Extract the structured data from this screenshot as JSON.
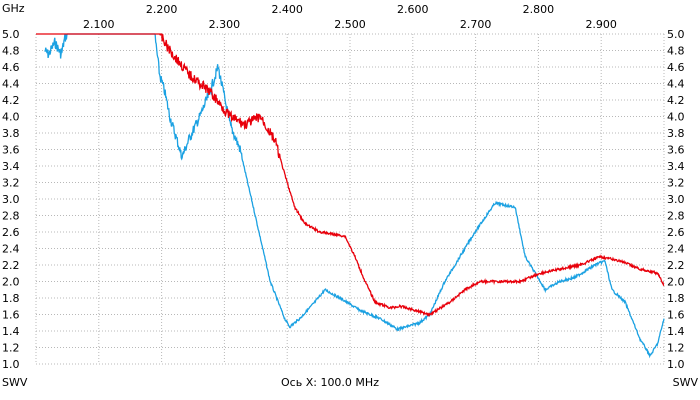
{
  "chart_data": {
    "type": "line",
    "title": "",
    "x_unit_label": "GHz",
    "xlabel": "Ось X: 100.0 MHz",
    "ylabel_left": "SWV",
    "ylabel_right": "SWV",
    "xlim": [
      2.0,
      3.0
    ],
    "ylim": [
      1.0,
      5.0
    ],
    "grid": true,
    "x_ticks": [
      "2.100",
      "2.200",
      "2.300",
      "2.400",
      "2.500",
      "2.600",
      "2.700",
      "2.800",
      "2.900"
    ],
    "y_ticks": [
      "1.0",
      "1.2",
      "1.4",
      "1.6",
      "1.8",
      "2.0",
      "2.2",
      "2.4",
      "2.6",
      "2.8",
      "3.0",
      "3.2",
      "3.4",
      "3.6",
      "3.8",
      "4.0",
      "4.2",
      "4.4",
      "4.6",
      "4.8",
      "5.0"
    ],
    "series": [
      {
        "name": "blue",
        "color": "#1ba1e2",
        "noisy": true,
        "x": [
          2.014,
          2.02,
          2.03,
          2.04,
          2.046,
          2.05,
          2.1,
          2.189,
          2.197,
          2.205,
          2.213,
          2.229,
          2.232,
          2.245,
          2.261,
          2.277,
          2.29,
          2.309,
          2.325,
          2.349,
          2.373,
          2.396,
          2.404,
          2.42,
          2.444,
          2.46,
          2.484,
          2.516,
          2.548,
          2.576,
          2.611,
          2.627,
          2.651,
          2.675,
          2.699,
          2.731,
          2.763,
          2.779,
          2.795,
          2.811,
          2.834,
          2.858,
          2.89,
          2.906,
          2.917,
          2.938,
          2.962,
          2.978,
          2.99,
          3.0
        ],
        "y": [
          4.8,
          4.75,
          4.9,
          4.75,
          4.95,
          5.0,
          5.0,
          5.0,
          4.5,
          4.3,
          4.0,
          3.6,
          3.5,
          3.75,
          4.0,
          4.3,
          4.6,
          3.9,
          3.6,
          2.8,
          2.0,
          1.55,
          1.45,
          1.55,
          1.75,
          1.9,
          1.8,
          1.65,
          1.55,
          1.42,
          1.5,
          1.6,
          2.0,
          2.3,
          2.6,
          2.95,
          2.9,
          2.3,
          2.1,
          1.9,
          2.0,
          2.05,
          2.2,
          2.25,
          1.9,
          1.75,
          1.3,
          1.1,
          1.25,
          1.55
        ]
      },
      {
        "name": "red",
        "color": "#e8000b",
        "noisy": true,
        "x": [
          2.0,
          2.1,
          2.189,
          2.197,
          2.213,
          2.245,
          2.277,
          2.309,
          2.333,
          2.357,
          2.381,
          2.396,
          2.412,
          2.428,
          2.452,
          2.492,
          2.508,
          2.524,
          2.54,
          2.564,
          2.58,
          2.604,
          2.627,
          2.659,
          2.683,
          2.707,
          2.739,
          2.771,
          2.803,
          2.834,
          2.866,
          2.898,
          2.93,
          2.962,
          2.99,
          3.0
        ],
        "y": [
          5.0,
          5.0,
          5.0,
          5.0,
          4.8,
          4.5,
          4.3,
          4.0,
          3.9,
          4.0,
          3.7,
          3.3,
          2.9,
          2.7,
          2.6,
          2.55,
          2.3,
          2.0,
          1.75,
          1.68,
          1.7,
          1.65,
          1.6,
          1.75,
          1.9,
          2.0,
          2.0,
          2.0,
          2.1,
          2.15,
          2.2,
          2.3,
          2.25,
          2.15,
          2.1,
          1.95
        ]
      }
    ]
  }
}
